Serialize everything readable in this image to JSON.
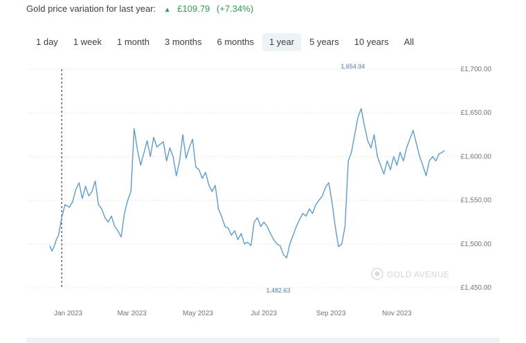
{
  "header": {
    "title": "Gold price variation for last year:",
    "change_icon": "triangle-up-icon",
    "change_value": "£109.79",
    "change_pct": "(+7.34%)",
    "change_color": "#2e9b4f"
  },
  "ranges": {
    "items": [
      "1 day",
      "1 week",
      "1 month",
      "3 months",
      "6 months",
      "1 year",
      "5 years",
      "10 years",
      "All"
    ],
    "selected": "1 year"
  },
  "watermark": "GOLD AVENUE",
  "chart_data": {
    "type": "line",
    "series": [
      {
        "color": "#5b9bd5",
        "x": [
          "2022-12-15",
          "2022-12-17",
          "2022-12-19",
          "2022-12-21",
          "2022-12-23",
          "2022-12-26",
          "2022-12-29",
          "2023-01-02",
          "2023-01-05",
          "2023-01-08",
          "2023-01-11",
          "2023-01-14",
          "2023-01-17",
          "2023-01-20",
          "2023-01-23",
          "2023-01-26",
          "2023-01-29",
          "2023-02-01",
          "2023-02-04",
          "2023-02-07",
          "2023-02-10",
          "2023-02-13",
          "2023-02-16",
          "2023-02-19",
          "2023-02-22",
          "2023-02-25",
          "2023-02-28",
          "2023-03-03",
          "2023-03-06",
          "2023-03-09",
          "2023-03-12",
          "2023-03-15",
          "2023-03-18",
          "2023-03-21",
          "2023-03-24",
          "2023-03-27",
          "2023-03-30",
          "2023-04-02",
          "2023-04-05",
          "2023-04-08",
          "2023-04-11",
          "2023-04-14",
          "2023-04-17",
          "2023-04-20",
          "2023-04-23",
          "2023-04-26",
          "2023-04-29",
          "2023-05-02",
          "2023-05-05",
          "2023-05-08",
          "2023-05-11",
          "2023-05-14",
          "2023-05-17",
          "2023-05-20",
          "2023-05-23",
          "2023-05-26",
          "2023-05-29",
          "2023-06-01",
          "2023-06-04",
          "2023-06-07",
          "2023-06-10",
          "2023-06-13",
          "2023-06-16",
          "2023-06-19",
          "2023-06-22",
          "2023-06-25",
          "2023-06-28",
          "2023-07-01",
          "2023-07-04",
          "2023-07-07",
          "2023-07-10",
          "2023-07-13",
          "2023-07-16",
          "2023-07-19",
          "2023-07-22",
          "2023-07-25",
          "2023-07-28",
          "2023-07-31",
          "2023-08-03",
          "2023-08-06",
          "2023-08-09",
          "2023-08-12",
          "2023-08-15",
          "2023-08-18",
          "2023-08-21",
          "2023-08-24",
          "2023-08-27",
          "2023-08-30",
          "2023-09-02",
          "2023-09-05",
          "2023-09-08",
          "2023-09-11",
          "2023-09-14",
          "2023-09-17",
          "2023-09-20",
          "2023-09-23",
          "2023-09-26",
          "2023-09-29",
          "2023-10-02",
          "2023-10-05",
          "2023-10-08",
          "2023-10-11",
          "2023-10-14",
          "2023-10-17",
          "2023-10-20",
          "2023-10-23",
          "2023-10-26",
          "2023-10-29",
          "2023-11-01",
          "2023-11-04",
          "2023-11-07",
          "2023-11-10",
          "2023-11-13",
          "2023-11-16",
          "2023-11-19",
          "2023-11-22",
          "2023-11-25",
          "2023-11-28",
          "2023-12-01",
          "2023-12-04",
          "2023-12-07",
          "2023-12-10",
          "2023-12-13",
          "2023-12-15"
        ],
        "y": [
          1498,
          1492,
          1497,
          1505,
          1510,
          1530,
          1545,
          1542,
          1548,
          1562,
          1570,
          1552,
          1566,
          1555,
          1560,
          1572,
          1545,
          1540,
          1530,
          1525,
          1532,
          1520,
          1515,
          1508,
          1535,
          1550,
          1560,
          1632,
          1608,
          1590,
          1604,
          1618,
          1600,
          1622,
          1611,
          1614,
          1617,
          1595,
          1610,
          1600,
          1578,
          1595,
          1625,
          1598,
          1610,
          1620,
          1588,
          1585,
          1575,
          1582,
          1568,
          1560,
          1567,
          1540,
          1531,
          1520,
          1518,
          1510,
          1515,
          1505,
          1512,
          1500,
          1502,
          1498,
          1525,
          1530,
          1520,
          1525,
          1520,
          1512,
          1505,
          1500,
          1498,
          1488,
          1484,
          1500,
          1510,
          1520,
          1528,
          1535,
          1532,
          1540,
          1535,
          1545,
          1550,
          1555,
          1565,
          1570,
          1548,
          1520,
          1497,
          1500,
          1520,
          1595,
          1605,
          1625,
          1645,
          1654.94,
          1635,
          1618,
          1610,
          1625,
          1600,
          1590,
          1580,
          1595,
          1585,
          1600,
          1590,
          1605,
          1595,
          1610,
          1620,
          1630,
          1615,
          1600,
          1590,
          1578,
          1595,
          1600,
          1595,
          1603,
          1605,
          1607
        ]
      }
    ],
    "ylim": [
      1450,
      1700
    ],
    "yticks": [
      1450,
      1500,
      1550,
      1600,
      1650,
      1700
    ],
    "ytick_labels": [
      "£1,450.00",
      "£1,500.00",
      "£1,550.00",
      "£1,600.00",
      "£1,650.00",
      "£1,700.00"
    ],
    "xticks": [
      "2023-01-01",
      "2023-03-01",
      "2023-05-01",
      "2023-07-01",
      "2023-09-01",
      "2023-11-01"
    ],
    "xtick_labels": [
      "Jan 2023",
      "Mar 2023",
      "May 2023",
      "Jul 2023",
      "Sep 2023",
      "Nov 2023"
    ],
    "xlim": [
      "2022-12-15",
      "2023-12-20"
    ],
    "annotations": {
      "max_label": "1,654.94",
      "min_label": "1,482.63"
    },
    "grid": "horizontal-dotted",
    "crosshair": "vertical dashed line at series start",
    "y_axis_position": "right"
  }
}
